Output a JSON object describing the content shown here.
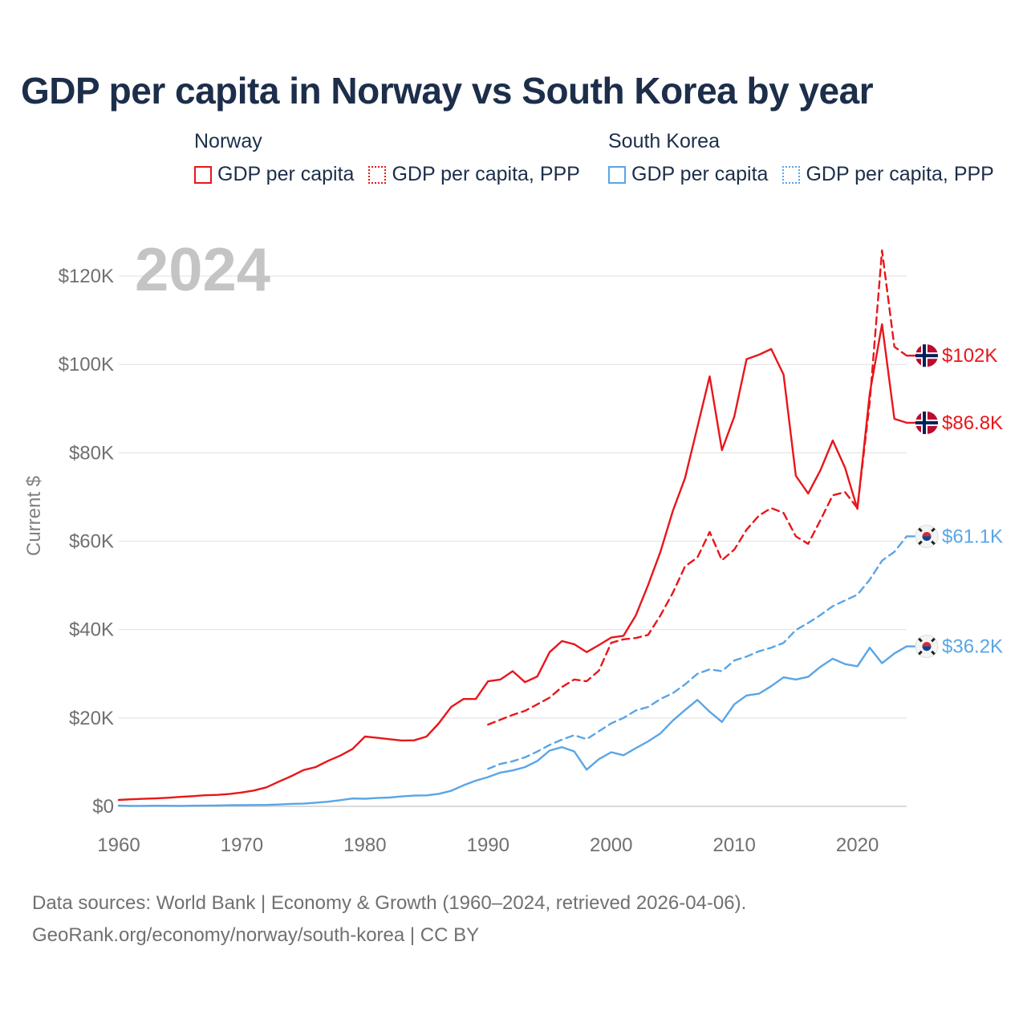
{
  "title": "GDP per capita in Norway vs South Korea by year",
  "legend": {
    "groups": [
      {
        "name": "Norway",
        "items": [
          {
            "label": "GDP per capita",
            "style": "solid",
            "color": "#e8161b"
          },
          {
            "label": "GDP per capita, PPP",
            "style": "dotted",
            "color": "#e8161b"
          }
        ]
      },
      {
        "name": "South Korea",
        "items": [
          {
            "label": "GDP per capita",
            "style": "solid",
            "color": "#5aa5e6"
          },
          {
            "label": "GDP per capita, PPP",
            "style": "dotted",
            "color": "#5aa5e6"
          }
        ]
      }
    ]
  },
  "footer": {
    "line1": "Data sources: World Bank | Economy & Growth (1960–2024, retrieved 2026-04-06).",
    "line2": "GeoRank.org/economy/norway/south-korea | CC BY"
  },
  "chart_data": {
    "type": "line",
    "title": "GDP per capita in Norway vs South Korea by year",
    "ylabel": "Current $",
    "xlabel": "",
    "year_label": "2024",
    "xlim": [
      1960,
      2024
    ],
    "ylim": [
      0,
      130000
    ],
    "x_ticks": [
      1960,
      1970,
      1980,
      1990,
      2000,
      2010,
      2020
    ],
    "y_ticks": [
      0,
      20000,
      40000,
      60000,
      80000,
      100000,
      120000
    ],
    "y_tick_labels": [
      "$0",
      "$20K",
      "$40K",
      "$60K",
      "$80K",
      "$100K",
      "$120K"
    ],
    "series": [
      {
        "name": "Norway GDP per capita",
        "country": "Norway",
        "color": "#e8161b",
        "dash": "solid",
        "end_label": "$86.8K",
        "x_start": 1960,
        "values": [
          1450,
          1600,
          1700,
          1800,
          1950,
          2150,
          2300,
          2500,
          2600,
          2800,
          3150,
          3600,
          4300,
          5600,
          6800,
          8200,
          8900,
          10300,
          11500,
          13000,
          15800,
          15500,
          15200,
          14900,
          14950,
          15800,
          18800,
          22500,
          24300,
          24300,
          28300,
          28700,
          30600,
          28100,
          29400,
          34900,
          37400,
          36700,
          34900,
          36500,
          38200,
          38600,
          43200,
          50100,
          57600,
          66800,
          74300,
          85800,
          97300,
          80600,
          88200,
          101200,
          102200,
          103500,
          97700,
          74800,
          70800,
          76100,
          82800,
          76600,
          67300,
          93400,
          109100,
          87700,
          86800
        ]
      },
      {
        "name": "Norway GDP per capita, PPP",
        "country": "Norway",
        "color": "#e8161b",
        "dash": "dashed",
        "end_label": "$102K",
        "x_start": 1990,
        "values": [
          18500,
          19600,
          20700,
          21600,
          23100,
          24600,
          27000,
          28700,
          28300,
          30700,
          37000,
          37800,
          38100,
          38800,
          43200,
          48300,
          54300,
          56300,
          62100,
          55700,
          58100,
          62600,
          65800,
          67500,
          66400,
          61100,
          59400,
          64800,
          70400,
          71100,
          67500,
          91500,
          125800,
          104000,
          102000
        ]
      },
      {
        "name": "South Korea GDP per capita",
        "country": "South Korea",
        "color": "#5aa5e6",
        "dash": "solid",
        "end_label": "$36.2K",
        "x_start": 1960,
        "values": [
          160,
          100,
          110,
          140,
          120,
          110,
          140,
          160,
          200,
          250,
          280,
          310,
          330,
          410,
          560,
          620,
          830,
          1060,
          1400,
          1780,
          1720,
          1880,
          2000,
          2250,
          2430,
          2480,
          2840,
          3530,
          4750,
          5810,
          6620,
          7640,
          8130,
          8870,
          10280,
          12610,
          13400,
          12430,
          8290,
          10670,
          12260,
          11560,
          13170,
          14700,
          16500,
          19400,
          21800,
          24100,
          21400,
          19100,
          23100,
          25100,
          25500,
          27200,
          29200,
          28700,
          29300,
          31600,
          33400,
          32200,
          31700,
          35900,
          32400,
          34600,
          36200
        ]
      },
      {
        "name": "South Korea GDP per capita, PPP",
        "country": "South Korea",
        "color": "#5aa5e6",
        "dash": "dashed",
        "end_label": "$61.1K",
        "x_start": 1990,
        "values": [
          8500,
          9600,
          10200,
          11100,
          12400,
          13900,
          15100,
          16100,
          15200,
          17000,
          18800,
          20000,
          21700,
          22500,
          24300,
          25600,
          27600,
          30000,
          31000,
          30600,
          33000,
          33900,
          35100,
          35900,
          37000,
          39900,
          41500,
          43300,
          45300,
          46600,
          47900,
          51300,
          55600,
          57600,
          61100
        ]
      }
    ]
  }
}
